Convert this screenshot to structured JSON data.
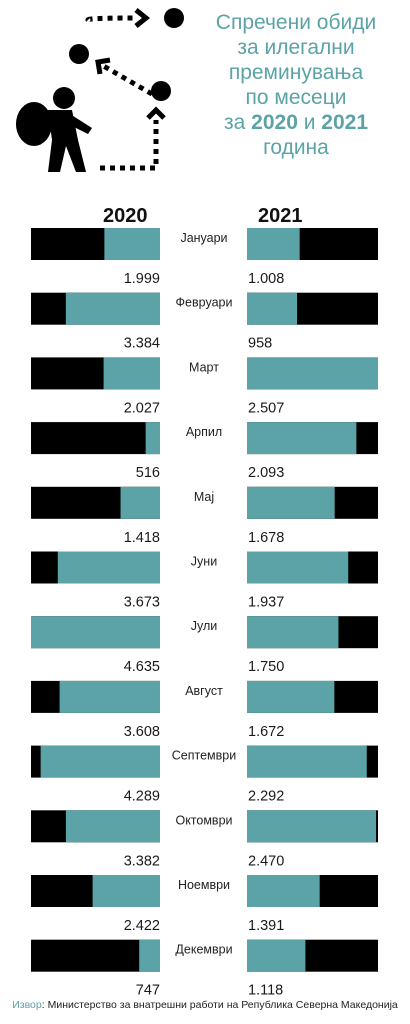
{
  "title": {
    "line1": "Спречени обиди",
    "line2": "за илегални",
    "line3": "преминувања",
    "line4": "по месеци",
    "line5_pre": "за ",
    "line5_y1": "2020",
    "line5_mid": " и ",
    "line5_y2": "2021",
    "line6": "година"
  },
  "source": {
    "label": "Извор",
    "text": ": Министерство за внатрешни работи на Република Северна Македонија"
  },
  "colors": {
    "teal": "#5ba3a6",
    "black": "#000000",
    "title": "#5ba3a6"
  },
  "illustration": [
    "traveler-icon",
    "dots-icon",
    "arrow-icon"
  ],
  "chart_data": {
    "type": "bar",
    "categories": [
      "Јануари",
      "Февруари",
      "Март",
      "Арпил",
      "Мај",
      "Јуни",
      "Јули",
      "Август",
      "Септември",
      "Октомври",
      "Ноември",
      "Декември"
    ],
    "series": [
      {
        "name": "2020",
        "values": [
          1999,
          3384,
          2027,
          516,
          1418,
          3673,
          4635,
          3608,
          4289,
          3382,
          2422,
          747
        ],
        "labels": [
          "1.999",
          "3.384",
          "2.027",
          "516",
          "1.418",
          "3.673",
          "4.635",
          "3.608",
          "4.289",
          "3.382",
          "2.422",
          "747"
        ]
      },
      {
        "name": "2021",
        "values": [
          1008,
          958,
          2507,
          2093,
          1678,
          1937,
          1750,
          1672,
          2292,
          2470,
          1391,
          1118
        ],
        "labels": [
          "1.008",
          "958",
          "2.507",
          "2.093",
          "1.678",
          "1.937",
          "1.750",
          "1.672",
          "2.292",
          "2.470",
          "1.391",
          "1.118"
        ]
      }
    ]
  }
}
